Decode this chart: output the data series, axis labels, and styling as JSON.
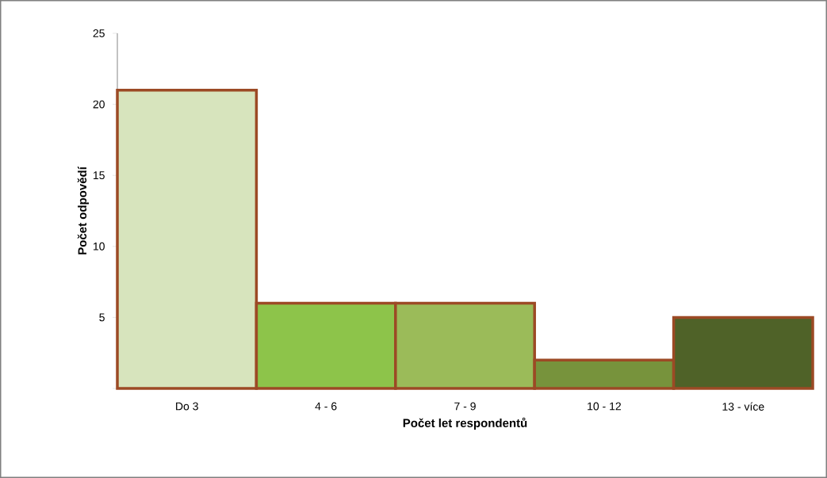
{
  "chart_data": {
    "type": "bar",
    "xlabel": "Počet let respondentů",
    "ylabel": "Počet odpovědí",
    "categories": [
      "Do 3",
      "4 - 6",
      "7 - 9",
      "10 - 12",
      "13 - více"
    ],
    "values": [
      21,
      6,
      6,
      2,
      5
    ],
    "colors": [
      "#d7e4bd",
      "#8dc44a",
      "#9bbb59",
      "#77933c",
      "#4f6228"
    ],
    "ylim": [
      0,
      25
    ],
    "yticks": [
      {
        "value": 0,
        "label": null
      },
      5,
      10,
      15,
      20,
      25
    ],
    "grid": false
  }
}
